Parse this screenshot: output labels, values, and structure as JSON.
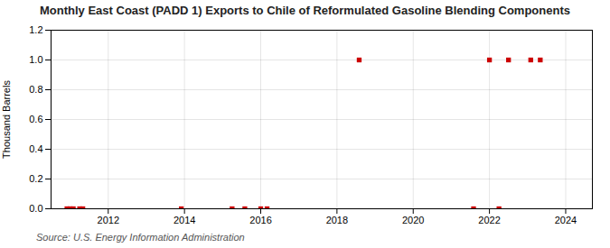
{
  "chart_data": {
    "type": "scatter",
    "title": "Monthly East Coast (PADD 1) Exports to Chile of Reformulated Gasoline Blending Components",
    "ylabel": "Thousand Barrels",
    "source": "Source: U.S. Energy Information Administration",
    "x": [
      2010.917,
      2011.0,
      2011.083,
      2011.25,
      2011.333,
      2013.917,
      2015.25,
      2015.583,
      2016.0,
      2016.167,
      2018.583,
      2021.583,
      2022.0,
      2022.25,
      2022.5,
      2023.083,
      2023.333
    ],
    "values": [
      0.0,
      0.0,
      0.0,
      0.0,
      0.0,
      0.0,
      0.0,
      0.0,
      0.0,
      0.0,
      1.0,
      0.0,
      1.0,
      0.0,
      1.0,
      1.0,
      1.0
    ],
    "color": "#cc0000",
    "marker": "square",
    "xlim": [
      2010.5,
      2024.7
    ],
    "xticks": [
      2012,
      2014,
      2016,
      2018,
      2020,
      2022,
      2024
    ],
    "ylim": [
      0.0,
      1.2
    ],
    "yticks": [
      {
        "value": 0,
        "label": "0.0"
      },
      0.2,
      0.4,
      0.6,
      0.8,
      {
        "value": 1,
        "label": "1.0"
      },
      1.2
    ],
    "grid": true
  }
}
